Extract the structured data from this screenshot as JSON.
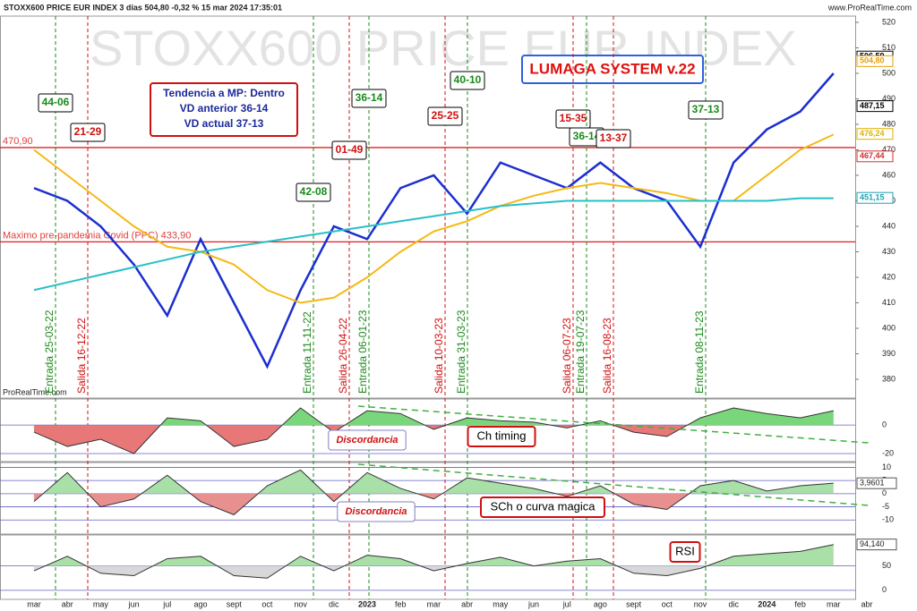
{
  "header": {
    "title": "STOXX600 PRICE EUR INDEX 3 días 504,80 -0,32 % 15 mar 2024 17:35:01",
    "site": "www.ProRealTime.com",
    "footer": "ProRealTime.com"
  },
  "watermark": "STOXX600 PRICE EUR INDEX",
  "system_label": "LUMAGA SYSTEM v.22",
  "trend_box": [
    "Tendencia a MP: Dentro",
    "VD anterior 36-14",
    "VD actual 37-13"
  ],
  "chart_data": [
    {
      "type": "line",
      "categories": [
        "mar",
        "abr",
        "may",
        "jun",
        "jul",
        "ago",
        "sept",
        "oct",
        "nov",
        "dic",
        "2023",
        "feb",
        "mar",
        "abr",
        "may",
        "jun",
        "jul",
        "ago",
        "sept",
        "oct",
        "nov",
        "dic",
        "2024",
        "feb",
        "mar",
        "abr"
      ],
      "series": [
        {
          "color": "#1c2fd0",
          "values": [
            455,
            450,
            440,
            425,
            405,
            435,
            410,
            385,
            415,
            440,
            435,
            455,
            460,
            445,
            465,
            460,
            455,
            465,
            455,
            450,
            432,
            465,
            478,
            485,
            500,
            null
          ]
        },
        {
          "color": "#f5b914",
          "values": [
            470,
            460,
            450,
            440,
            432,
            430,
            425,
            415,
            410,
            412,
            420,
            430,
            438,
            442,
            448,
            452,
            455,
            457,
            455,
            453,
            450,
            450,
            460,
            470,
            476,
            null
          ]
        },
        {
          "color": "#28c0c8",
          "values": [
            415,
            418,
            421,
            424,
            427,
            430,
            432,
            434,
            436,
            438,
            440,
            442,
            444,
            446,
            448,
            449,
            450,
            450,
            450,
            450,
            450,
            450,
            450,
            451,
            451,
            null
          ]
        }
      ],
      "ylim": [
        380,
        520
      ],
      "yticks": [
        380,
        390,
        400,
        410,
        420,
        430,
        440,
        450,
        460,
        470,
        480,
        490,
        500,
        510,
        520
      ],
      "levels": [
        {
          "value": 470.9,
          "label": "470,90"
        },
        {
          "value": 433.9,
          "label": "Maximo pre-pandemia Covid (PPC) 433,90"
        }
      ],
      "price_labels": [
        {
          "value": 506.59,
          "label": "506,59",
          "color": "#000000"
        },
        {
          "value": 504.8,
          "label": "504,80",
          "color": "#e8a000"
        },
        {
          "value": 487.15,
          "label": "487,15",
          "color": "#000000"
        },
        {
          "value": 476.24,
          "label": "476,24",
          "color": "#e0b000"
        },
        {
          "value": 467.44,
          "label": "467,44",
          "color": "#d03030"
        },
        {
          "value": 451.15,
          "label": "451,15",
          "color": "#20a0b0"
        }
      ],
      "signals": [
        {
          "label": "Entrada 25-03-22",
          "score": "44-06",
          "color": "#1a8a1a"
        },
        {
          "label": "Salida 16-12-22",
          "score": "21-29",
          "color": "#d01010"
        },
        {
          "label": "Entrada 11-11-22",
          "score": "42-08",
          "color": "#1a8a1a"
        },
        {
          "label": "Salida 26-04-22",
          "score": "01-49",
          "color": "#d01010"
        },
        {
          "label": "Entrada 06-01-23",
          "score": "36-14",
          "color": "#1a8a1a"
        },
        {
          "label": "Salida 10-03-23",
          "score": "25-25",
          "color": "#d01010"
        },
        {
          "label": "Entrada 31-03-23",
          "score": "40-10",
          "color": "#1a8a1a"
        },
        {
          "label": "Salida 06-07-23",
          "score": "15-35",
          "color": "#d01010"
        },
        {
          "label": "Entrada 19-07-23",
          "score": "36-14",
          "color": "#1a8a1a"
        },
        {
          "label": "Salida 16-08-23",
          "score": "13-37",
          "color": "#d01010"
        },
        {
          "label": "Entrada 08-11-23",
          "score": "37-13",
          "color": "#1a8a1a"
        }
      ]
    },
    {
      "type": "area",
      "title": "Ch timing",
      "annotation": "Discordancia",
      "values": [
        -5,
        -15,
        -10,
        -20,
        5,
        3,
        -15,
        -10,
        12,
        -5,
        10,
        8,
        -3,
        5,
        3,
        2,
        -2,
        3,
        -5,
        -8,
        5,
        12,
        8,
        5,
        10,
        null
      ],
      "pos_color": "#7ad67a",
      "neg_color": "#e87878",
      "ylim": [
        -25,
        17
      ],
      "yticks": [
        -20,
        0
      ]
    },
    {
      "type": "area",
      "title": "SCh o curva magica",
      "annotation": "Discordancia",
      "values": [
        -3,
        8,
        -5,
        -2,
        7,
        -3,
        -8,
        3,
        9,
        -3,
        8,
        2,
        -2,
        6,
        4,
        2,
        -1,
        3,
        -4,
        -6,
        3,
        5,
        1,
        3,
        4,
        null
      ],
      "pos_color": "#a8e0a8",
      "neg_color": "#e89090",
      "ylim": [
        -15,
        11.5
      ],
      "yticks": [
        -10,
        -5,
        0,
        5,
        10
      ],
      "last_label": {
        "value": 3.9601,
        "label": "3,9601"
      }
    },
    {
      "type": "area",
      "title": "RSI",
      "values": [
        40,
        70,
        35,
        30,
        65,
        70,
        30,
        25,
        70,
        40,
        72,
        65,
        40,
        55,
        68,
        50,
        60,
        65,
        35,
        30,
        45,
        70,
        75,
        80,
        94,
        null
      ],
      "pos_color": "#a8e0a8",
      "neg_color": "#d8d8d8",
      "base": 50,
      "ylim": [
        -15,
        110
      ],
      "yticks": [
        0,
        50
      ],
      "last_label": {
        "value": 94.14,
        "label": "94,140"
      }
    }
  ]
}
